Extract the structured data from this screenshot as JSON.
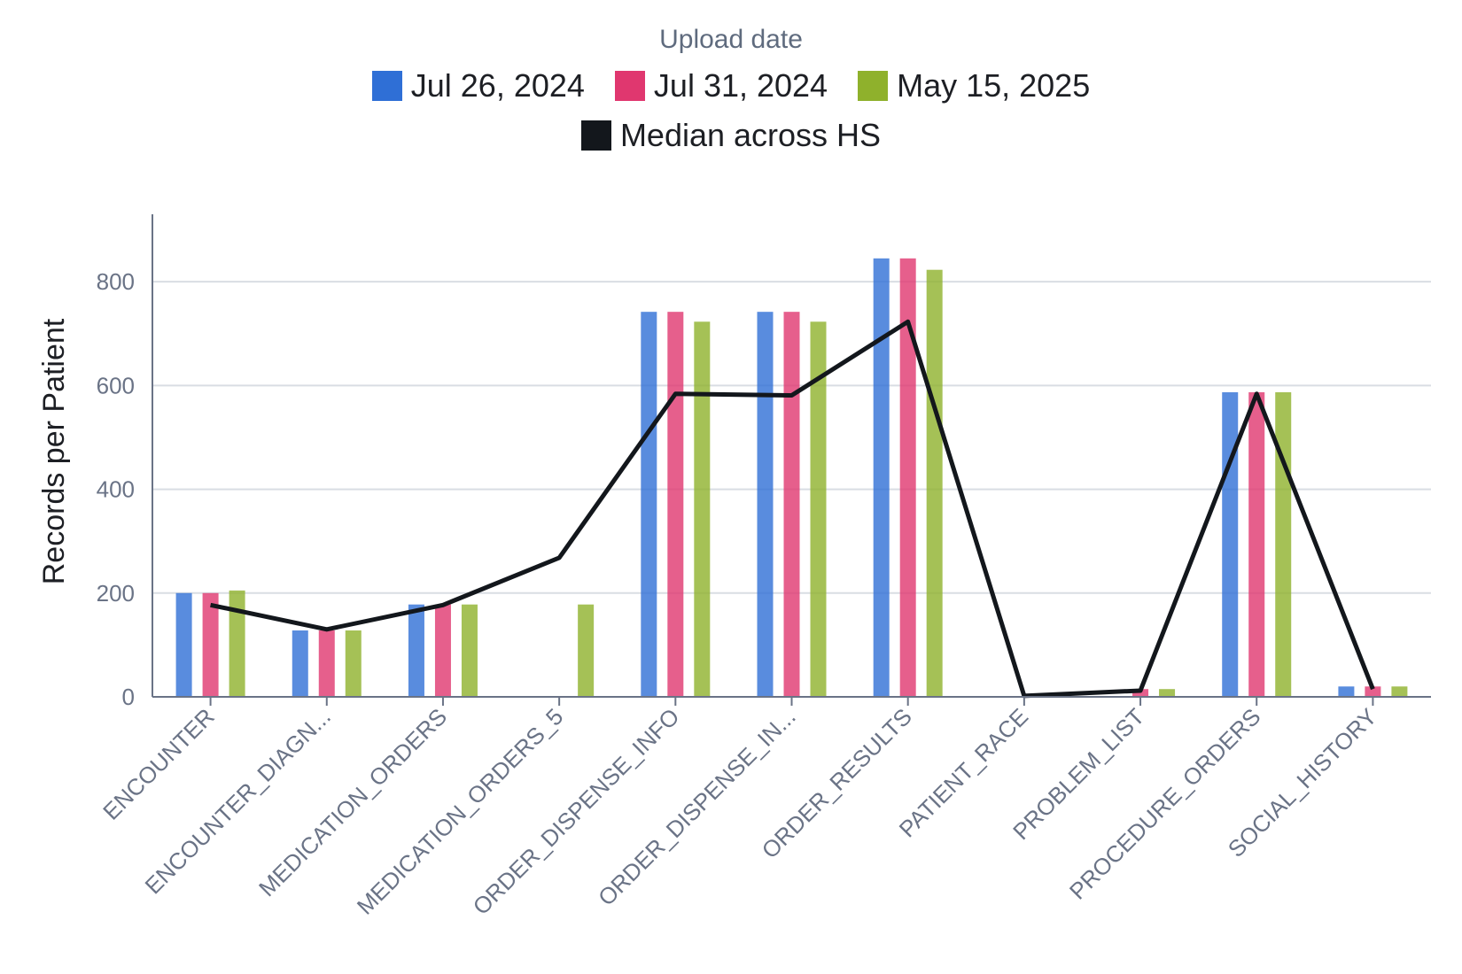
{
  "legend": {
    "title": "Upload date",
    "items": [
      {
        "label": "Jul 26, 2024",
        "color": "#2f6fd6"
      },
      {
        "label": "Jul 31, 2024",
        "color": "#e0376f"
      },
      {
        "label": "May 15, 2025",
        "color": "#8fb12c"
      },
      {
        "label": "Median across HS",
        "color": "#13171c"
      }
    ]
  },
  "chart_data": {
    "type": "bar",
    "ylabel": "Records per Patient",
    "xlabel": "",
    "ylim": [
      0,
      930
    ],
    "yticks": [
      0,
      200,
      400,
      600,
      800
    ],
    "grid": true,
    "legend_position": "top-center",
    "categories": [
      "ENCOUNTER",
      "ENCOUNTER_DIAGN...",
      "MEDICATION_ORDERS",
      "MEDICATION_ORDERS_5",
      "ORDER_DISPENSE_INFO",
      "ORDER_DISPENSE_IN...",
      "ORDER_RESULTS",
      "PATIENT_RACE",
      "PROBLEM_LIST",
      "PROCEDURE_ORDERS",
      "SOCIAL_HISTORY"
    ],
    "series": [
      {
        "name": "Jul 26, 2024",
        "type": "bar",
        "color": "#2f6fd6",
        "values": [
          200,
          128,
          178,
          0,
          742,
          742,
          845,
          0,
          0,
          587,
          20
        ]
      },
      {
        "name": "Jul 31, 2024",
        "type": "bar",
        "color": "#e0376f",
        "values": [
          200,
          128,
          178,
          0,
          742,
          742,
          845,
          0,
          15,
          587,
          20
        ]
      },
      {
        "name": "May 15, 2025",
        "type": "bar",
        "color": "#8fb12c",
        "values": [
          205,
          128,
          178,
          178,
          723,
          723,
          823,
          0,
          15,
          587,
          20
        ]
      },
      {
        "name": "Median across HS",
        "type": "line",
        "color": "#13171c",
        "values": [
          177,
          130,
          177,
          268,
          584,
          581,
          723,
          2,
          12,
          584,
          15
        ]
      }
    ]
  }
}
